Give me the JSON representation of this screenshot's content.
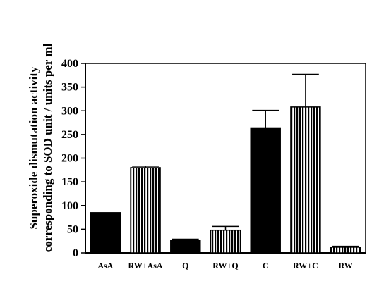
{
  "chart_data": {
    "type": "bar",
    "categories": [
      "AsA",
      "RW+AsA",
      "Q",
      "RW+Q",
      "C",
      "RW+C",
      "RW"
    ],
    "values": [
      85,
      180,
      27,
      48,
      264,
      308,
      12
    ],
    "error_upper": [
      85,
      183,
      29,
      56,
      301,
      377,
      14
    ],
    "fills": [
      "solid",
      "striped",
      "solid",
      "striped",
      "solid",
      "striped",
      "striped"
    ],
    "ylabel_line1": "Superoxide dismutation activity",
    "ylabel_line2": "corresponding to SOD unit / units per ml",
    "yticks": [
      0,
      50,
      100,
      150,
      200,
      250,
      300,
      350,
      400
    ],
    "ylim": [
      0,
      400
    ],
    "grid": false
  },
  "colors": {
    "bar": "#000000",
    "stripe_bg": "#ffffff"
  }
}
